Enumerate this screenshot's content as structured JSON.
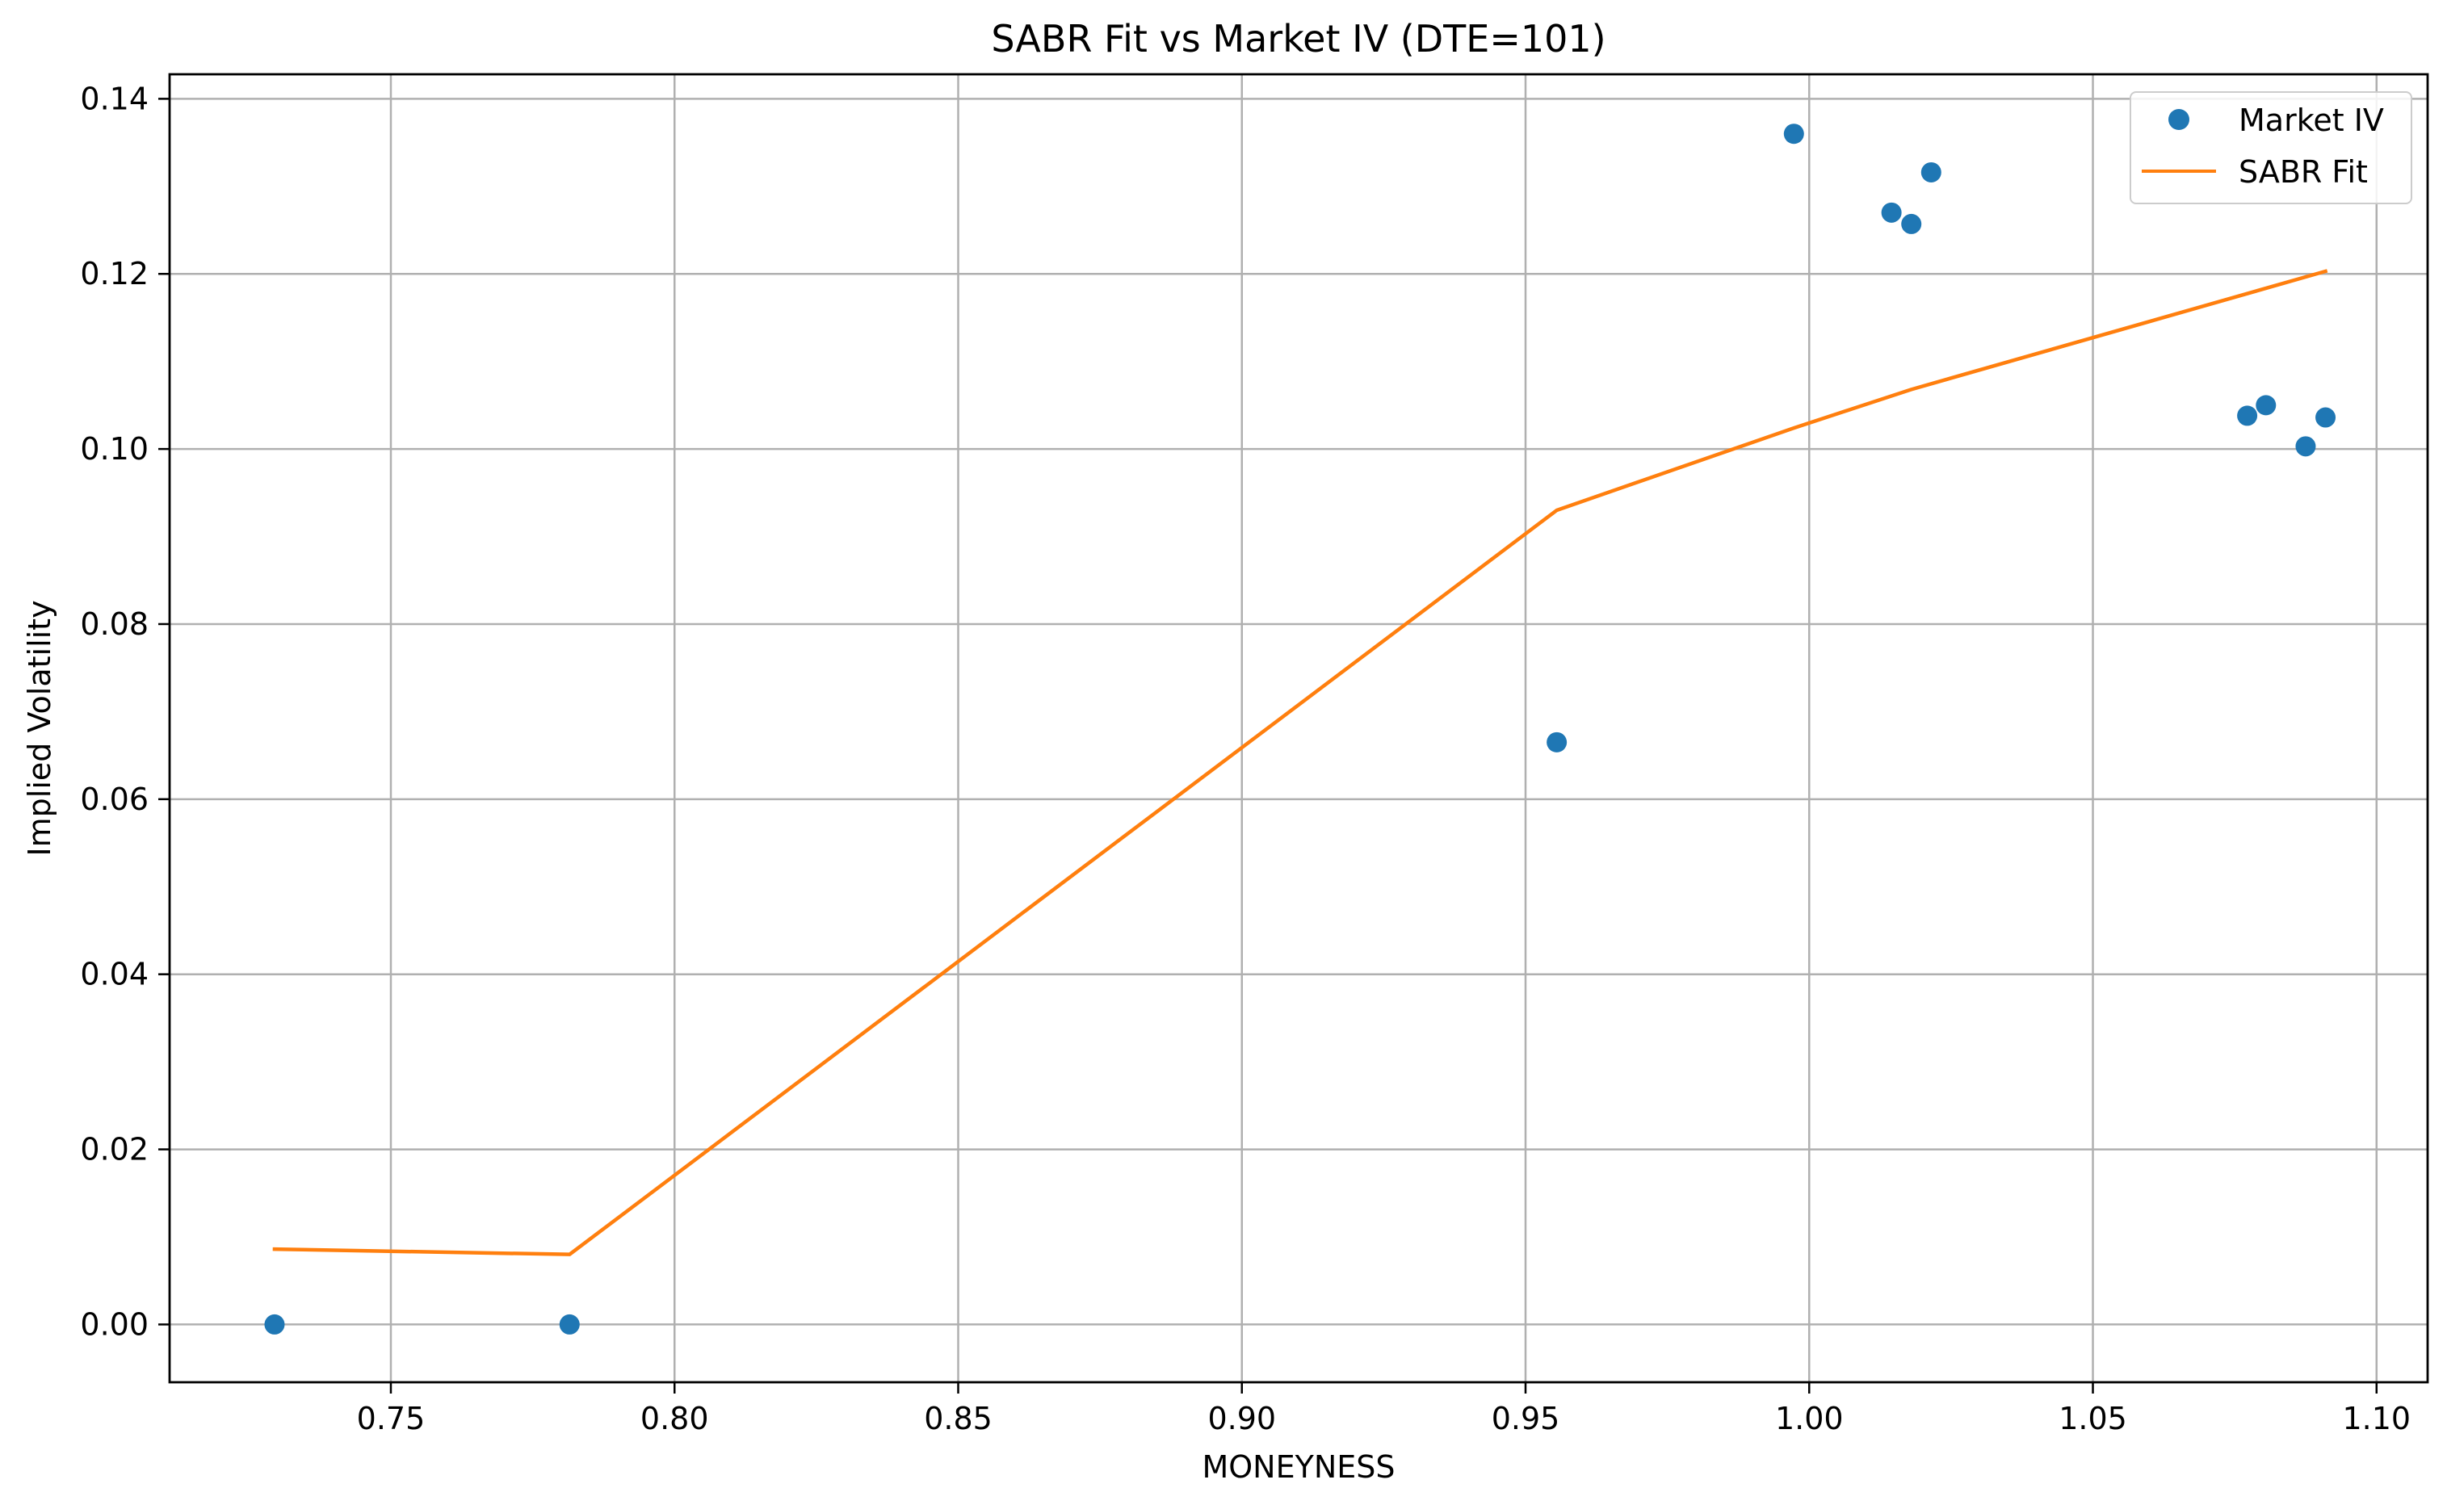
{
  "chart_data": {
    "type": "scatter",
    "title": "SABR Fit vs Market IV (DTE=101)",
    "xlabel": "MONEYNESS",
    "ylabel": "Implied Volatility",
    "xlim": [
      0.711,
      1.109
    ],
    "ylim": [
      -0.0066,
      0.1428
    ],
    "grid": true,
    "legend_position": "top-right",
    "x_ticks": [
      0.75,
      0.8,
      0.85,
      0.9,
      0.95,
      1.0,
      1.05,
      1.1
    ],
    "x_tick_labels": [
      "0.75",
      "0.80",
      "0.85",
      "0.90",
      "0.95",
      "1.00",
      "1.05",
      "1.10"
    ],
    "y_ticks": [
      0.0,
      0.02,
      0.04,
      0.06,
      0.08,
      0.1,
      0.12,
      0.14
    ],
    "y_tick_labels": [
      "0.00",
      "0.02",
      "0.04",
      "0.06",
      "0.08",
      "0.10",
      "0.12",
      "0.14"
    ],
    "series": [
      {
        "name": "Market IV",
        "kind": "scatter",
        "color": "#1f77b4",
        "x": [
          0.7295,
          0.7815,
          0.9555,
          0.9973,
          1.0145,
          1.018,
          1.0215,
          1.0772,
          1.0805,
          1.0875,
          1.091
        ],
        "y": [
          0.0,
          0.0,
          0.0665,
          0.136,
          0.127,
          0.1257,
          0.1316,
          0.1038,
          0.105,
          0.1003,
          0.1036
        ]
      },
      {
        "name": "SABR Fit",
        "kind": "line",
        "color": "#ff7f0e",
        "x": [
          0.7295,
          0.7815,
          0.9555,
          0.9973,
          1.018,
          1.091
        ],
        "y": [
          0.0086,
          0.008,
          0.093,
          0.1024,
          0.1068,
          0.1203
        ]
      }
    ]
  }
}
